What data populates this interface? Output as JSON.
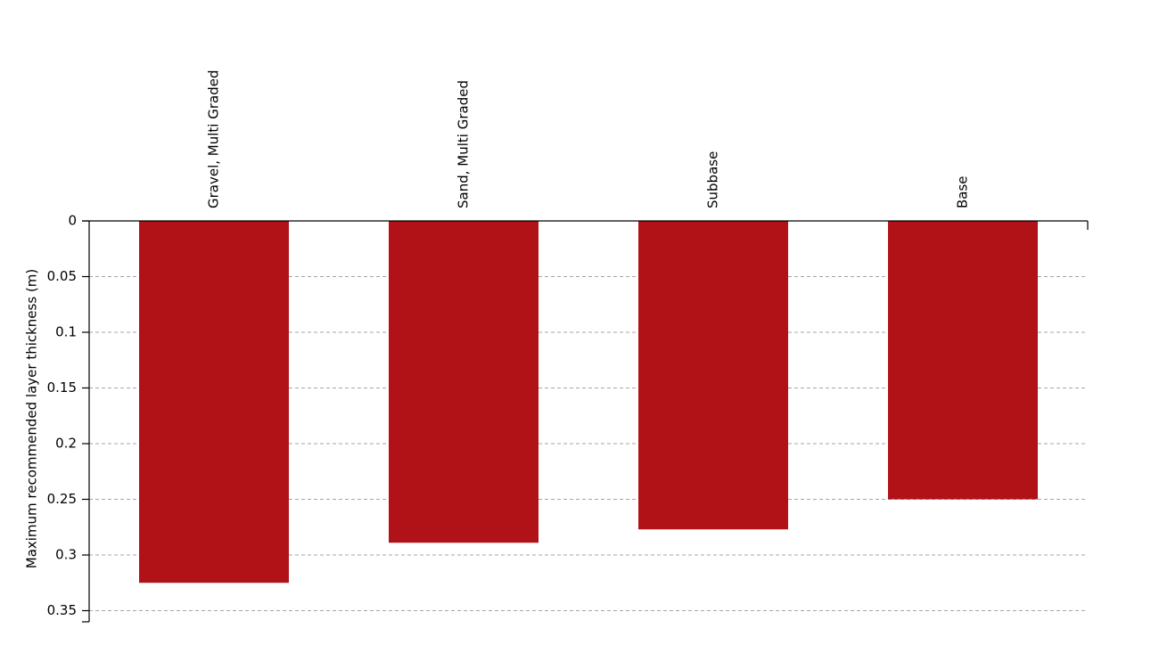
{
  "chart_data": {
    "type": "bar",
    "y_label": "Maximum recommended layer thickness (m)",
    "categories": [
      "Gravel, Multi Graded",
      "Sand, Multi Graded",
      "Subbase",
      "Base"
    ],
    "values": [
      0.325,
      0.289,
      0.277,
      0.25
    ],
    "color": "#b01218",
    "ylim": [
      0,
      0.36
    ],
    "yticks": [
      0,
      0.05,
      0.1,
      0.15,
      0.2,
      0.25,
      0.3,
      0.35
    ],
    "invert_y": true,
    "grid": true
  }
}
